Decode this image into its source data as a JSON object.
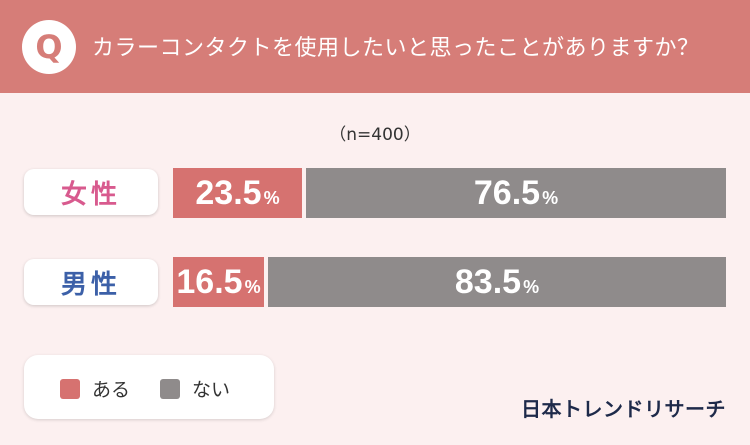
{
  "header": {
    "badge": "Q",
    "question": "カラーコンタクトを使用したいと思ったことがありますか？"
  },
  "sample_note": "（n=400）",
  "brand": "日本トレンドリサーチ",
  "colors": {
    "header_bg": "#d67d78",
    "page_bg": "#fcf0f0",
    "yes": "#d67270",
    "no": "#8f8b8b",
    "female_label": "#d85a8e",
    "male_label": "#3c60a8"
  },
  "chart_data": {
    "type": "bar",
    "orientation": "horizontal",
    "stacked": true,
    "unit": "%",
    "categories": [
      "女性",
      "男性"
    ],
    "series": [
      {
        "name": "ある",
        "values": [
          23.5,
          16.5
        ]
      },
      {
        "name": "ない",
        "values": [
          76.5,
          83.5
        ]
      }
    ],
    "xlim": [
      0,
      100
    ],
    "title": "",
    "legend_position": "bottom-left"
  }
}
